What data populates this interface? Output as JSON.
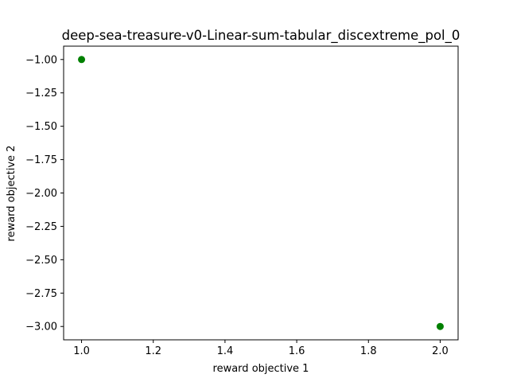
{
  "chart_data": {
    "type": "scatter",
    "title": "deep-sea-treasure-v0-Linear-sum-tabular_discextreme_pol_0",
    "xlabel": "reward objective 1",
    "ylabel": "reward objective 2",
    "xlim": [
      0.95,
      2.05
    ],
    "ylim": [
      -3.1,
      -0.9
    ],
    "xticks": [
      1.0,
      1.2,
      1.4,
      1.6,
      1.8,
      2.0
    ],
    "xtick_labels": [
      "1.0",
      "1.2",
      "1.4",
      "1.6",
      "1.8",
      "2.0"
    ],
    "yticks": [
      -1.0,
      -1.25,
      -1.5,
      -1.75,
      -2.0,
      -2.25,
      -2.5,
      -2.75,
      -3.0
    ],
    "ytick_labels": [
      "−1.00",
      "−1.25",
      "−1.50",
      "−1.75",
      "−2.00",
      "−2.25",
      "−2.50",
      "−2.75",
      "−3.00"
    ],
    "grid": false,
    "series": [
      {
        "color": "#008000",
        "points": [
          {
            "x": 1.0,
            "y": -1.0
          },
          {
            "x": 2.0,
            "y": -3.0
          }
        ]
      }
    ]
  }
}
